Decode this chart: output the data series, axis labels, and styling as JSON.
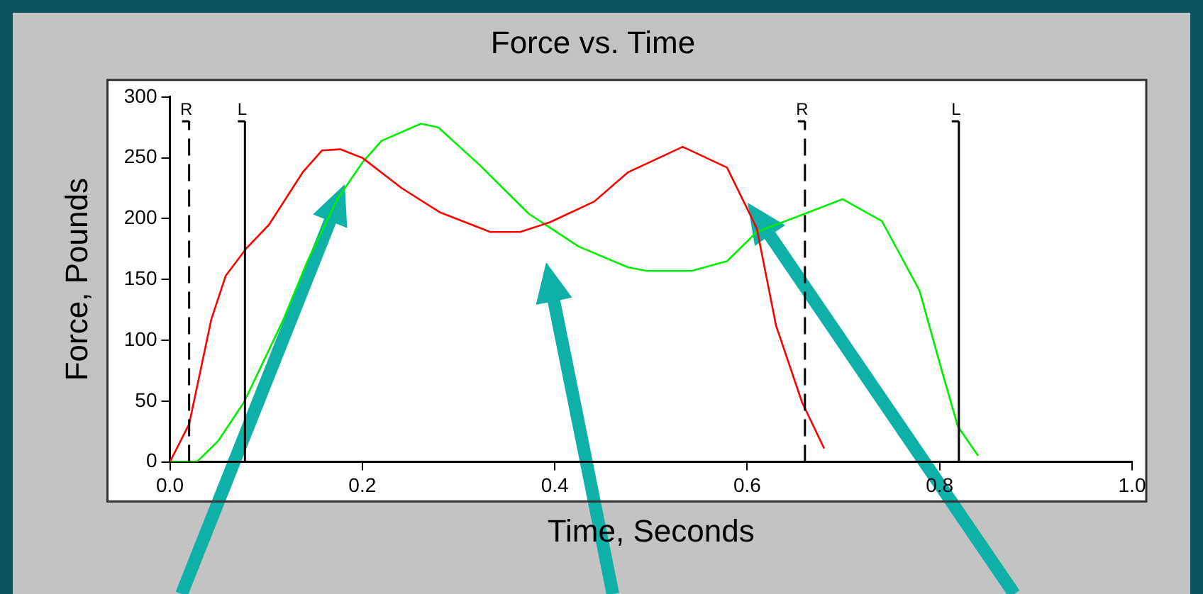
{
  "chart_data": {
    "type": "line",
    "title": "Force vs. Time",
    "xlabel": "Time, Seconds",
    "ylabel": "Force, Pounds",
    "xlim": [
      0,
      1.0
    ],
    "ylim": [
      0,
      300
    ],
    "xticks": [
      {
        "value": 0,
        "label": "0.0"
      },
      {
        "value": 0.2,
        "label": "0.2"
      },
      {
        "value": 0.4,
        "label": "0.4"
      },
      {
        "value": 0.6,
        "label": "0.6"
      },
      {
        "value": 0.8,
        "label": "0.8"
      },
      {
        "value": 1.0,
        "label": "1.0"
      }
    ],
    "yticks": [
      0,
      50,
      100,
      150,
      200,
      250,
      300
    ],
    "grid": false,
    "legend": false,
    "marker": "none",
    "series": [
      {
        "color": "#ff0000",
        "x": [
          0,
          0.02,
          0.043,
          0.058,
          0.08,
          0.103,
          0.138,
          0.158,
          0.177,
          0.2,
          0.241,
          0.281,
          0.333,
          0.364,
          0.395,
          0.441,
          0.476,
          0.533,
          0.579,
          0.61,
          0.63,
          0.657,
          0.68
        ],
        "values": [
          0,
          31,
          117,
          153,
          176,
          195,
          238,
          256,
          257,
          250,
          225,
          205,
          189,
          189,
          197,
          214,
          238,
          259,
          242,
          192,
          112,
          49,
          11
        ]
      },
      {
        "color": "#00ee00",
        "x": [
          0,
          0.028,
          0.05,
          0.077,
          0.118,
          0.143,
          0.174,
          0.2,
          0.22,
          0.261,
          0.279,
          0.322,
          0.373,
          0.425,
          0.476,
          0.496,
          0.542,
          0.579,
          0.61,
          0.66,
          0.699,
          0.74,
          0.779,
          0.803,
          0.819,
          0.84
        ],
        "values": [
          0,
          0,
          17,
          49,
          117,
          165,
          216,
          246,
          264,
          278,
          275,
          244,
          204,
          177,
          160,
          157,
          157,
          165,
          189,
          204,
          216,
          198,
          141,
          73,
          29,
          5
        ]
      }
    ],
    "ref_lines": [
      {
        "axis": "x",
        "value": 0.02,
        "label": "R",
        "line_style": "dashed"
      },
      {
        "axis": "x",
        "value": 0.078,
        "label": "L",
        "line_style": "solid"
      },
      {
        "axis": "x",
        "value": 0.66,
        "label": "R",
        "line_style": "dashed"
      },
      {
        "axis": "x",
        "value": 0.82,
        "label": "L",
        "line_style": "solid"
      }
    ]
  }
}
